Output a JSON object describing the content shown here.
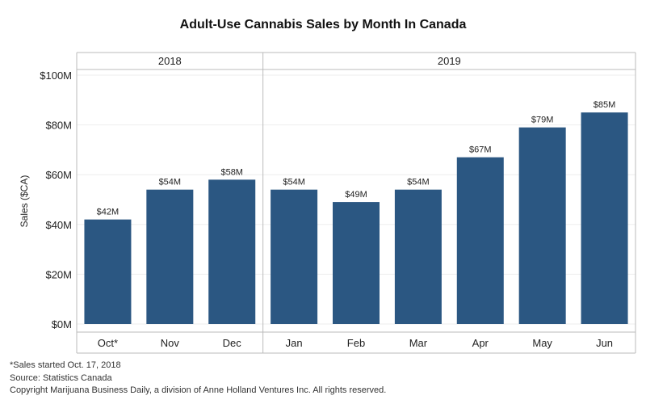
{
  "chart_data": {
    "type": "bar",
    "title": "Adult-Use Cannabis Sales by Month In Canada",
    "ylabel": "Sales ($CA)",
    "xlabel": "",
    "groups": [
      {
        "label": "2018",
        "categories": [
          "Oct*",
          "Nov",
          "Dec"
        ]
      },
      {
        "label": "2019",
        "categories": [
          "Jan",
          "Feb",
          "Mar",
          "Apr",
          "May",
          "Jun"
        ]
      }
    ],
    "categories": [
      "Oct*",
      "Nov",
      "Dec",
      "Jan",
      "Feb",
      "Mar",
      "Apr",
      "May",
      "Jun"
    ],
    "values": [
      42,
      54,
      58,
      54,
      49,
      54,
      67,
      79,
      85
    ],
    "value_labels": [
      "$42M",
      "$54M",
      "$58M",
      "$54M",
      "$49M",
      "$54M",
      "$67M",
      "$79M",
      "$85M"
    ],
    "ylim": [
      0,
      100
    ],
    "y_ticks": [
      0,
      20,
      40,
      60,
      80,
      100
    ],
    "y_tick_labels": [
      "$0M",
      "$20M",
      "$40M",
      "$60M",
      "$80M",
      "$100M"
    ],
    "grid": true,
    "bar_color": "#2b5782"
  },
  "footnotes": [
    "*Sales started Oct. 17, 2018",
    "Source: Statistics Canada",
    "Copyright Marijuana Business Daily, a division of Anne Holland Ventures Inc. All rights reserved."
  ]
}
